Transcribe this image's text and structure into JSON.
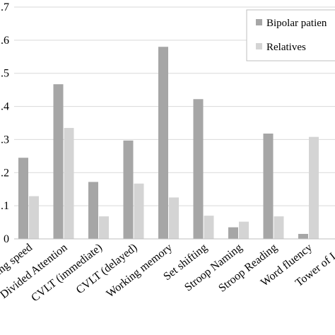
{
  "chart_data": {
    "type": "bar",
    "categories": [
      "Processing speed",
      "Divided Attention",
      "CVLT (immediate)",
      "CVLT (delayed)",
      "Working memory",
      "Set shifting",
      "Stroop Naming",
      "Stroop Reading",
      "Word fluency",
      "Tower of London"
    ],
    "visible_category_labels": [
      "ing speed",
      "Divided Attention",
      "CVLT (immediate)",
      "CVLT (delayed)",
      "Working memory",
      "Set shifting",
      "Stroop Naming",
      "Stroop Reading",
      "Word fluency",
      "Tower of Lon"
    ],
    "series": [
      {
        "name": "Bipolar patien",
        "color": "#a6a6a6",
        "values": [
          0.245,
          0.467,
          0.172,
          0.297,
          0.58,
          0.422,
          0.035,
          0.318,
          0.015,
          0.0
        ]
      },
      {
        "name": "Relatives",
        "color": "#d4d4d4",
        "values": [
          0.129,
          0.335,
          0.068,
          0.167,
          0.125,
          0.07,
          0.052,
          0.068,
          0.308,
          0.0
        ]
      }
    ],
    "y_tick_labels": [
      ".7",
      ".6",
      ".5",
      ".4",
      ".3",
      ".2",
      ".1",
      "0"
    ],
    "y_ticks": [
      0.7,
      0.6,
      0.5,
      0.4,
      0.3,
      0.2,
      0.1,
      0.0
    ],
    "ylim": [
      0,
      0.7
    ],
    "grid": true,
    "legend_position": "top-right"
  },
  "legend": {
    "items": [
      {
        "label": "Bipolar patien",
        "color": "#a6a6a6"
      },
      {
        "label": "Relatives",
        "color": "#d4d4d4"
      }
    ]
  }
}
